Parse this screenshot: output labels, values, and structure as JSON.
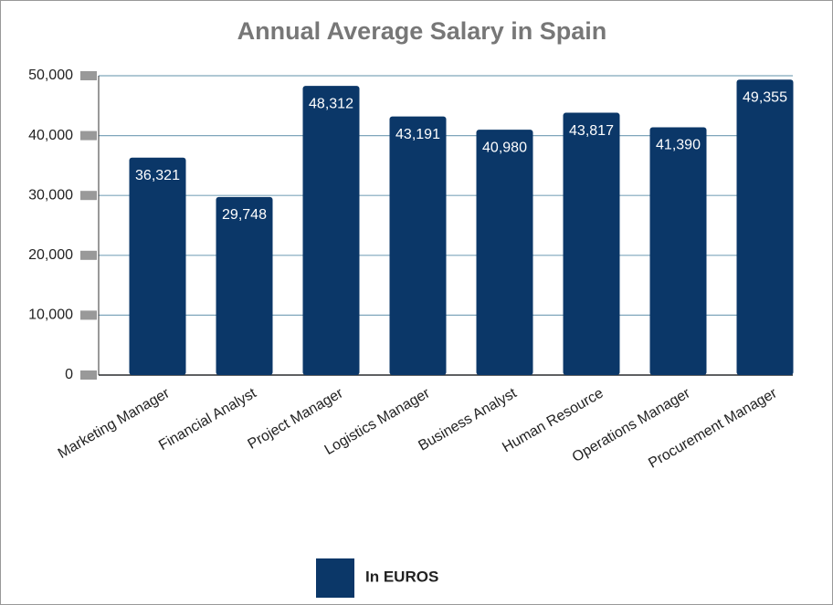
{
  "chart_data": {
    "type": "bar",
    "title": "Annual Average Salary in Spain",
    "categories": [
      "Marketing Manager",
      "Financial Analyst",
      "Project Manager",
      "Logistics Manager",
      "Business Analyst",
      "Human Resource",
      "Operations Manager",
      "Procurement Manager"
    ],
    "series": [
      {
        "name": "In EUROS",
        "color": "#0b3768",
        "values": [
          36321,
          29748,
          48312,
          43191,
          40980,
          43817,
          41390,
          49355
        ],
        "value_labels": [
          "36,321",
          "29,748",
          "48,312",
          "43,191",
          "40,980",
          "43,817",
          "41,390",
          "49,355"
        ]
      }
    ],
    "ylim": [
      0,
      50000
    ],
    "yticks": [
      0,
      {
        "value": 10000,
        "label": "10,000"
      },
      {
        "value": 20000,
        "label": "20,000"
      },
      {
        "value": 30000,
        "label": "30,000"
      },
      {
        "value": 40000,
        "label": "40,000"
      },
      {
        "value": 50000,
        "label": "50,000"
      }
    ],
    "grid": true,
    "legend": "bottom"
  }
}
